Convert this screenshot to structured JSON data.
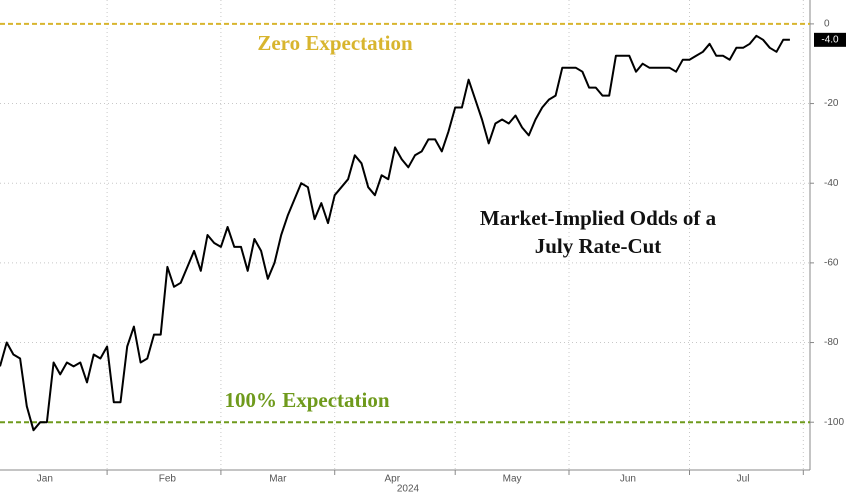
{
  "chart_data": {
    "type": "line",
    "title": [
      "Market-Implied Odds of a",
      "July Rate-Cut"
    ],
    "annotations": [
      {
        "text": "Zero Expectation",
        "value": 0,
        "color": "#d8b52e"
      },
      {
        "text": "100% Expectation",
        "value": -100,
        "color": "#6f9a1c"
      }
    ],
    "year_label": "2024",
    "end_label": "-4.0",
    "color": "#000000",
    "values": [
      -86,
      -80,
      -83,
      -84,
      -96,
      -102,
      -100,
      -100,
      -85,
      -88,
      -85,
      -86,
      -85,
      -90,
      -83,
      -84,
      -81,
      -95,
      -95,
      -81,
      -76,
      -85,
      -84,
      -78,
      -78,
      -61,
      -66,
      -65,
      -61,
      -57,
      -62,
      -53,
      -55,
      -56,
      -51,
      -56,
      -56,
      -62,
      -54,
      -57,
      -64,
      -60,
      -53,
      -48,
      -44,
      -40,
      -41,
      -49,
      -45,
      -50,
      -43,
      -41,
      -39,
      -33,
      -35,
      -41,
      -43,
      -38,
      -39,
      -31,
      -34,
      -36,
      -33,
      -32,
      -29,
      -29,
      -32,
      -27,
      -21,
      -21,
      -14,
      -19,
      -24,
      -30,
      -25,
      -24,
      -25,
      -23,
      -26,
      -28,
      -24,
      -21,
      -19,
      -18,
      -11,
      -11,
      -11,
      -12,
      -16,
      -16,
      -18,
      -18,
      -8,
      -8,
      -8,
      -12,
      -10,
      -11,
      -11,
      -11,
      -11,
      -12,
      -9,
      -9,
      -8,
      -7,
      -5,
      -8,
      -8,
      -9,
      -6,
      -6,
      -5,
      -3,
      -4,
      -6,
      -7,
      -4,
      -4
    ],
    "xlim": [
      0,
      121
    ],
    "xticks": [
      {
        "value": 6.7,
        "label": "Jan"
      },
      {
        "value": 25,
        "label": "Feb"
      },
      {
        "value": 41.5,
        "label": "Mar"
      },
      {
        "value": 58.6,
        "label": "Apr"
      },
      {
        "value": 76.5,
        "label": "May"
      },
      {
        "value": 93.8,
        "label": "Jun"
      },
      {
        "value": 111,
        "label": "Jul"
      }
    ],
    "xgrid": [
      16,
      33,
      50,
      68,
      85,
      103,
      120
    ],
    "ylim": [
      -112,
      6
    ],
    "yticks": [
      0,
      -20,
      -40,
      -60,
      -80,
      -100
    ],
    "grid": true
  }
}
